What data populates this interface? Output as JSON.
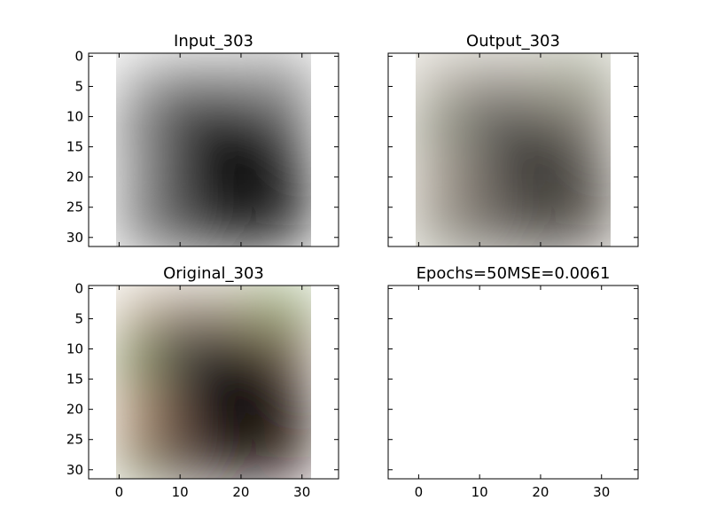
{
  "chart_data": [
    {
      "type": "image",
      "title": "Input_303",
      "channel": "grayscale",
      "xlim": [
        -5,
        36
      ],
      "ylim": [
        31.5,
        -0.5
      ],
      "yticks": [
        0,
        5,
        10,
        15,
        20,
        25,
        30
      ],
      "xticks": [
        0,
        10,
        20,
        30
      ],
      "show_xtick_labels": false,
      "show_ytick_labels": true
    },
    {
      "type": "image",
      "title": "Output_303",
      "channel": "rgb-desaturated",
      "xlim": [
        -5,
        36
      ],
      "ylim": [
        31.5,
        -0.5
      ],
      "yticks": [
        0,
        5,
        10,
        15,
        20,
        25,
        30
      ],
      "xticks": [
        0,
        10,
        20,
        30
      ],
      "show_xtick_labels": false,
      "show_ytick_labels": false
    },
    {
      "type": "image",
      "title": "Original_303",
      "channel": "rgb",
      "xlim": [
        -5,
        36
      ],
      "ylim": [
        31.5,
        -0.5
      ],
      "yticks": [
        0,
        5,
        10,
        15,
        20,
        25,
        30
      ],
      "xticks": [
        0,
        10,
        20,
        30
      ],
      "show_xtick_labels": true,
      "show_ytick_labels": true
    },
    {
      "type": "empty",
      "title": "Epochs=50MSE=0.0061",
      "xlim": [
        -5,
        36
      ],
      "ylim": [
        31.5,
        -0.5
      ],
      "yticks": [
        0,
        5,
        10,
        15,
        20,
        25,
        30
      ],
      "xticks": [
        0,
        10,
        20,
        30
      ],
      "show_xtick_labels": true,
      "show_ytick_labels": false
    }
  ],
  "image_subject": "horse-head",
  "colors": {
    "frame": "#000000",
    "background": "#ffffff"
  }
}
